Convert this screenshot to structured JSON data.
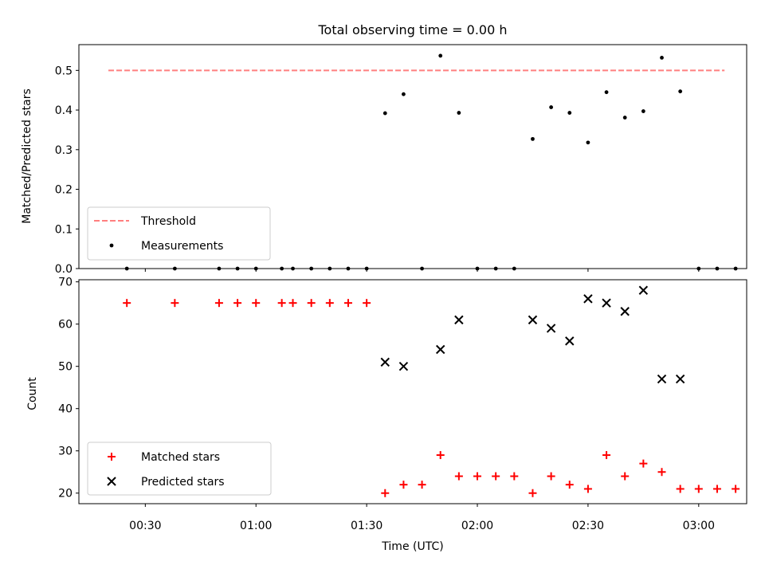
{
  "chart_data": [
    {
      "type": "scatter",
      "title": "Total observing time = 0.00 h",
      "ylabel": "Matched/Predicted stars",
      "xlabel": "",
      "ylim": [
        0,
        0.565
      ],
      "yticks": [
        "0.0",
        "0.1",
        "0.2",
        "0.3",
        "0.4",
        "0.5"
      ],
      "legend_position": "lower-left",
      "grid": false,
      "threshold": {
        "name": "Threshold",
        "value": 0.5,
        "x_start": "00:20",
        "x_end": "03:07",
        "color": "#ff7f7f"
      },
      "series": [
        {
          "name": "Measurements",
          "color": "#000000",
          "points": [
            [
              "00:25",
              0
            ],
            [
              "00:38",
              0
            ],
            [
              "00:50",
              0
            ],
            [
              "00:55",
              0
            ],
            [
              "01:00",
              0
            ],
            [
              "01:07",
              0
            ],
            [
              "01:10",
              0
            ],
            [
              "01:15",
              0
            ],
            [
              "01:20",
              0
            ],
            [
              "01:25",
              0
            ],
            [
              "01:30",
              0
            ],
            [
              "01:35",
              0.392
            ],
            [
              "01:40",
              0.44
            ],
            [
              "01:45",
              0
            ],
            [
              "01:50",
              0.537
            ],
            [
              "01:55",
              0.393
            ],
            [
              "02:00",
              0
            ],
            [
              "02:05",
              0
            ],
            [
              "02:10",
              0
            ],
            [
              "02:15",
              0.327
            ],
            [
              "02:20",
              0.407
            ],
            [
              "02:25",
              0.393
            ],
            [
              "02:30",
              0.318
            ],
            [
              "02:35",
              0.445
            ],
            [
              "02:40",
              0.381
            ],
            [
              "02:45",
              0.397
            ],
            [
              "02:50",
              0.532
            ],
            [
              "02:55",
              0.447
            ],
            [
              "03:00",
              0
            ],
            [
              "03:05",
              0
            ],
            [
              "03:10",
              0
            ]
          ]
        }
      ]
    },
    {
      "type": "scatter",
      "title": "",
      "ylabel": "Count",
      "xlabel": "Time (UTC)",
      "ylim": [
        17.5,
        70.5
      ],
      "yticks": [
        "20",
        "30",
        "40",
        "50",
        "60",
        "70"
      ],
      "xticks": [
        "00:30",
        "01:00",
        "01:30",
        "02:00",
        "02:30",
        "03:00"
      ],
      "xlim": [
        "00:12",
        "03:13"
      ],
      "legend_position": "lower-left",
      "grid": false,
      "series": [
        {
          "name": "Matched stars",
          "marker": "plus",
          "color": "#ff0000",
          "points": [
            [
              "00:25",
              65
            ],
            [
              "00:38",
              65
            ],
            [
              "00:50",
              65
            ],
            [
              "00:55",
              65
            ],
            [
              "01:00",
              65
            ],
            [
              "01:07",
              65
            ],
            [
              "01:10",
              65
            ],
            [
              "01:15",
              65
            ],
            [
              "01:20",
              65
            ],
            [
              "01:25",
              65
            ],
            [
              "01:30",
              65
            ],
            [
              "01:35",
              20
            ],
            [
              "01:40",
              22
            ],
            [
              "01:45",
              22
            ],
            [
              "01:50",
              29
            ],
            [
              "01:55",
              24
            ],
            [
              "02:00",
              24
            ],
            [
              "02:05",
              24
            ],
            [
              "02:10",
              24
            ],
            [
              "02:15",
              20
            ],
            [
              "02:20",
              24
            ],
            [
              "02:25",
              22
            ],
            [
              "02:30",
              21
            ],
            [
              "02:35",
              29
            ],
            [
              "02:40",
              24
            ],
            [
              "02:45",
              27
            ],
            [
              "02:50",
              25
            ],
            [
              "02:55",
              21
            ],
            [
              "03:00",
              21
            ],
            [
              "03:05",
              21
            ],
            [
              "03:10",
              21
            ]
          ]
        },
        {
          "name": "Predicted stars",
          "marker": "x",
          "color": "#000000",
          "points": [
            [
              "01:35",
              51
            ],
            [
              "01:40",
              50
            ],
            [
              "01:50",
              54
            ],
            [
              "01:55",
              61
            ],
            [
              "02:15",
              61
            ],
            [
              "02:20",
              59
            ],
            [
              "02:25",
              56
            ],
            [
              "02:30",
              66
            ],
            [
              "02:35",
              65
            ],
            [
              "02:40",
              63
            ],
            [
              "02:45",
              68
            ],
            [
              "02:50",
              47
            ],
            [
              "02:55",
              47
            ]
          ]
        }
      ]
    }
  ]
}
